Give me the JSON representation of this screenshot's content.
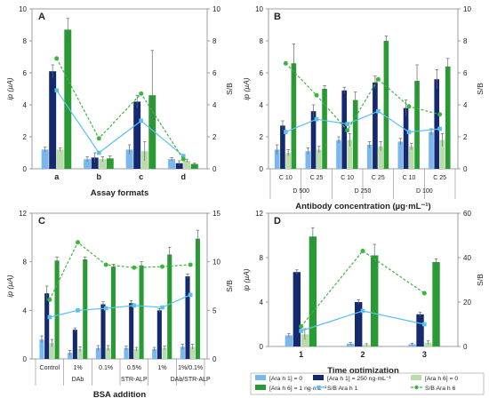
{
  "colors": {
    "ara1_zero": "#79b7ee",
    "ara1_250": "#152a6e",
    "ara6_zero": "#b9dca9",
    "ara6_1": "#2a9a35",
    "sb_ara1": "#5bc0f0",
    "sb_ara6": "#3db53d"
  },
  "legend": {
    "items": [
      {
        "label": "[Ara h 1] = 0",
        "kind": "bar",
        "color": "#79b7ee"
      },
      {
        "label": "[Ara h 1] = 250 ng·mL⁻¹",
        "kind": "bar",
        "color": "#152a6e"
      },
      {
        "label": "[Ara h 6] = 0",
        "kind": "bar",
        "color": "#b9dca9"
      },
      {
        "label": "[Ara h 6] = 1 ng·mL⁻¹",
        "kind": "bar",
        "color": "#2a9a35"
      },
      {
        "label": "S/B Ara h 1",
        "kind": "solid-line",
        "color": "#5bc0f0"
      },
      {
        "label": "S/B Ara h 6",
        "kind": "dashed-line",
        "color": "#3db53d"
      }
    ]
  },
  "chart_data": [
    {
      "panel": "A",
      "type": "bar",
      "xlabel": "Assay formats",
      "ylabel_left": "ip (µA)",
      "ylabel_right": "S/B",
      "ylim": [
        0,
        10
      ],
      "yticks": [
        0,
        2,
        4,
        6,
        8,
        10
      ],
      "y2lim": [
        0,
        10
      ],
      "y2ticks": [
        0,
        2,
        4,
        6,
        8,
        10
      ],
      "categories": [
        "a",
        "b",
        "c",
        "d"
      ],
      "series": [
        {
          "name": "[Ara h 1] = 0",
          "values": [
            1.2,
            0.6,
            1.2,
            0.6
          ],
          "errors": [
            0.15,
            0.15,
            0.3,
            0.1
          ]
        },
        {
          "name": "[Ara h 1] = 250 ng·mL⁻¹",
          "values": [
            6.1,
            0.7,
            4.2,
            0.35
          ],
          "errors": [
            0.4,
            0.3,
            0.4,
            0.15
          ]
        },
        {
          "name": "[Ara h 6] = 0",
          "values": [
            1.2,
            0.6,
            1.1,
            0.5
          ],
          "errors": [
            0.1,
            0.15,
            0.6,
            0.1
          ]
        },
        {
          "name": "[Ara h 6] = 1 ng·mL⁻¹",
          "values": [
            8.7,
            0.65,
            4.6,
            0.3
          ],
          "errors": [
            0.7,
            0.15,
            2.8,
            0.05
          ]
        }
      ],
      "sb_series": [
        {
          "name": "S/B Ara h 1",
          "values": [
            4.9,
            1.0,
            3.0,
            0.8
          ]
        },
        {
          "name": "S/B Ara h 6",
          "values": [
            6.9,
            1.9,
            4.7,
            0.6
          ]
        }
      ],
      "group_labels": []
    },
    {
      "panel": "B",
      "type": "bar",
      "xlabel": "Antibody concentration (µg·mL⁻¹)",
      "ylabel_left": "ip (µA)",
      "ylabel_right": "S/B",
      "ylim": [
        0,
        10
      ],
      "yticks": [
        0,
        2,
        4,
        6,
        8,
        10
      ],
      "y2lim": [
        0,
        10
      ],
      "y2ticks": [
        0,
        2,
        4,
        6,
        8,
        10
      ],
      "categories": [
        "C 10",
        "C 25",
        "C 10",
        "C 25",
        "C 10",
        "C 25"
      ],
      "series": [
        {
          "name": "[Ara h 1] = 0",
          "values": [
            1.2,
            1.1,
            1.8,
            1.5,
            1.7,
            2.3
          ],
          "errors": [
            0.3,
            0.2,
            0.2,
            0.2,
            0.2,
            0.2
          ]
        },
        {
          "name": "[Ara h 1] = 250 ng·mL⁻¹",
          "values": [
            2.7,
            3.6,
            4.9,
            5.4,
            3.8,
            5.6
          ],
          "errors": [
            0.3,
            0.4,
            0.2,
            0.4,
            0.5,
            0.6
          ]
        },
        {
          "name": "[Ara h 6] = 0",
          "values": [
            1.0,
            1.2,
            1.8,
            1.4,
            1.4,
            1.8
          ],
          "errors": [
            0.2,
            0.2,
            0.4,
            0.3,
            0.2,
            0.4
          ]
        },
        {
          "name": "[Ara h 6] = 1 ng·mL⁻¹",
          "values": [
            6.6,
            5.0,
            4.3,
            8.0,
            5.5,
            6.4
          ],
          "errors": [
            1.2,
            0.2,
            0.5,
            0.3,
            1.0,
            0.5
          ]
        }
      ],
      "sb_series": [
        {
          "name": "S/B Ara h 1",
          "values": [
            2.3,
            3.1,
            2.8,
            3.6,
            2.3,
            2.5
          ]
        },
        {
          "name": "S/B Ara h 6",
          "values": [
            6.6,
            4.6,
            2.4,
            5.6,
            3.9,
            3.4
          ]
        }
      ],
      "group_labels": [
        "D 500",
        "D 250",
        "D 100"
      ]
    },
    {
      "panel": "C",
      "type": "bar",
      "xlabel": "BSA addition",
      "ylabel_left": "ip (µA)",
      "ylabel_right": "S/B",
      "ylim": [
        0,
        12
      ],
      "yticks": [
        0,
        4,
        8,
        12
      ],
      "y2lim": [
        0,
        15
      ],
      "y2ticks": [
        0,
        5,
        10,
        15
      ],
      "categories": [
        "Control",
        "1%",
        "0.1%",
        "0.5%",
        "1%",
        "1%/0.1%"
      ],
      "series": [
        {
          "name": "[Ara h 1] = 0",
          "values": [
            1.6,
            0.5,
            0.9,
            0.9,
            0.8,
            1.0
          ],
          "errors": [
            0.3,
            0.2,
            0.2,
            0.15,
            0.15,
            0.2
          ]
        },
        {
          "name": "[Ara h 1] = 250 ng·mL⁻¹",
          "values": [
            5.4,
            2.4,
            4.5,
            4.6,
            4.0,
            6.8
          ],
          "errors": [
            0.6,
            0.15,
            0.2,
            0.2,
            0.15,
            0.2
          ]
        },
        {
          "name": "[Ara h 6] = 0",
          "values": [
            1.3,
            0.8,
            0.9,
            0.8,
            0.9,
            1.0
          ],
          "errors": [
            0.3,
            0.2,
            0.2,
            0.15,
            0.15,
            0.2
          ]
        },
        {
          "name": "[Ara h 6] = 1 ng·mL⁻¹",
          "values": [
            8.1,
            8.2,
            7.6,
            7.7,
            8.6,
            9.9
          ],
          "errors": [
            0.3,
            0.2,
            0.2,
            0.3,
            0.6,
            0.7
          ]
        }
      ],
      "sb_series": [
        {
          "name": "S/B Ara h 1",
          "values": [
            4.3,
            5.0,
            5.2,
            5.5,
            5.3,
            6.6
          ]
        },
        {
          "name": "S/B Ara h 6",
          "values": [
            6.1,
            12.0,
            9.7,
            9.4,
            9.5,
            9.7
          ]
        }
      ],
      "group_labels": [
        "DAb",
        "STR-ALP",
        "DAb/STR-ALP"
      ]
    },
    {
      "panel": "D",
      "type": "bar",
      "xlabel": "Time optimization",
      "ylabel_left": "ip (µA)",
      "ylabel_right": "S/B",
      "ylim": [
        0,
        12
      ],
      "yticks": [
        0,
        4,
        8,
        12
      ],
      "y2lim": [
        0,
        60
      ],
      "y2ticks": [
        0,
        20,
        40,
        60
      ],
      "categories": [
        "1",
        "2",
        "3"
      ],
      "series": [
        {
          "name": "[Ara h 1] = 0",
          "values": [
            1.0,
            0.25,
            0.2
          ],
          "errors": [
            0.15,
            0.1,
            0.1
          ]
        },
        {
          "name": "[Ara h 1] = 250 ng·mL⁻¹",
          "values": [
            6.7,
            4.0,
            2.9
          ],
          "errors": [
            0.2,
            0.2,
            0.2
          ]
        },
        {
          "name": "[Ara h 6] = 0",
          "values": [
            1.1,
            0.15,
            0.35
          ],
          "errors": [
            0.5,
            0.1,
            0.15
          ]
        },
        {
          "name": "[Ara h 6] = 1 ng·mL⁻¹",
          "values": [
            9.9,
            8.2,
            7.6
          ],
          "errors": [
            0.8,
            1.0,
            0.3
          ]
        }
      ],
      "sb_series": [
        {
          "name": "S/B Ara h 1",
          "values": [
            7,
            16,
            10
          ]
        },
        {
          "name": "S/B Ara h 6",
          "values": [
            9,
            43,
            24
          ]
        }
      ],
      "group_labels": []
    }
  ]
}
